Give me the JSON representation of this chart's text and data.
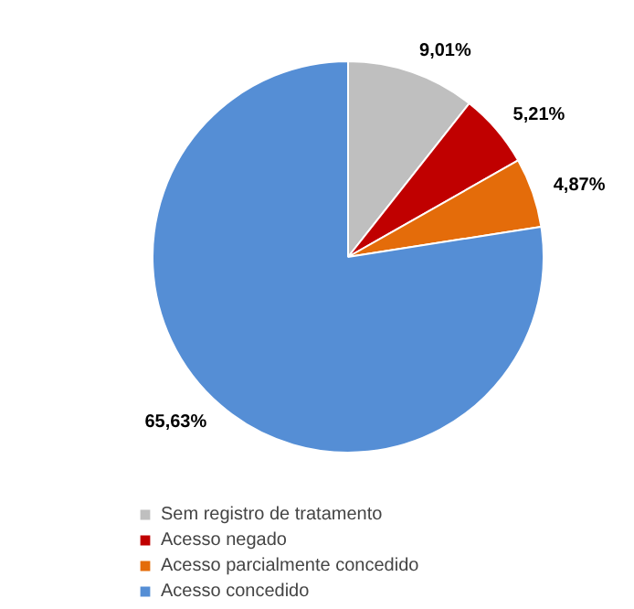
{
  "chart_data": {
    "type": "pie",
    "categories": [
      "Sem registro de tratamento",
      "Acesso negado",
      "Acesso parcialmente concedido",
      "Acesso concedido"
    ],
    "values": [
      9.01,
      5.21,
      4.87,
      65.63
    ],
    "colors": [
      "#bfbfbf",
      "#c00000",
      "#e46c0a",
      "#558ed5"
    ],
    "value_labels": [
      "9,01%",
      "5,21%",
      "4,87%",
      "65,63%"
    ],
    "legend": "bottom"
  }
}
